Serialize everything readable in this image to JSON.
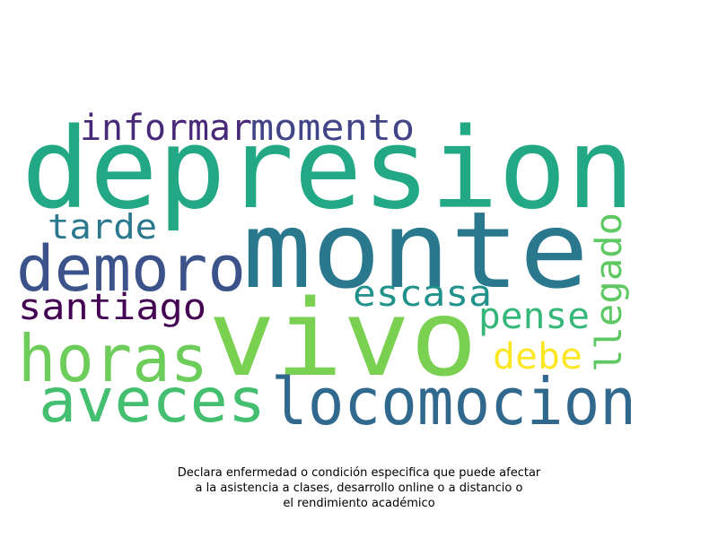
{
  "words": [
    {
      "text": "depresion",
      "color": "#22a884"
    },
    {
      "text": "monte",
      "color": "#2a788e"
    },
    {
      "text": "vivo",
      "color": "#7ad151"
    },
    {
      "text": "locomocion",
      "color": "#31688e"
    },
    {
      "text": "aveces",
      "color": "#44bf70"
    },
    {
      "text": "horas",
      "color": "#6ccd5a"
    },
    {
      "text": "demoro",
      "color": "#3b528b"
    },
    {
      "text": "informar",
      "color": "#482878"
    },
    {
      "text": "momento",
      "color": "#414487"
    },
    {
      "text": "tarde",
      "color": "#2a788e"
    },
    {
      "text": "santiago",
      "color": "#440154"
    },
    {
      "text": "escasa",
      "color": "#21918c"
    },
    {
      "text": "pense",
      "color": "#35b779"
    },
    {
      "text": "debe",
      "color": "#fde725"
    },
    {
      "text": "llegado",
      "color": "#5ec962"
    }
  ],
  "caption": {
    "line1": "Declara enfermedad o condición especifica que puede afectar",
    "line2": "a la asistencia a clases, desarrollo online o a distancio o",
    "line3": "el rendimiento académico"
  }
}
